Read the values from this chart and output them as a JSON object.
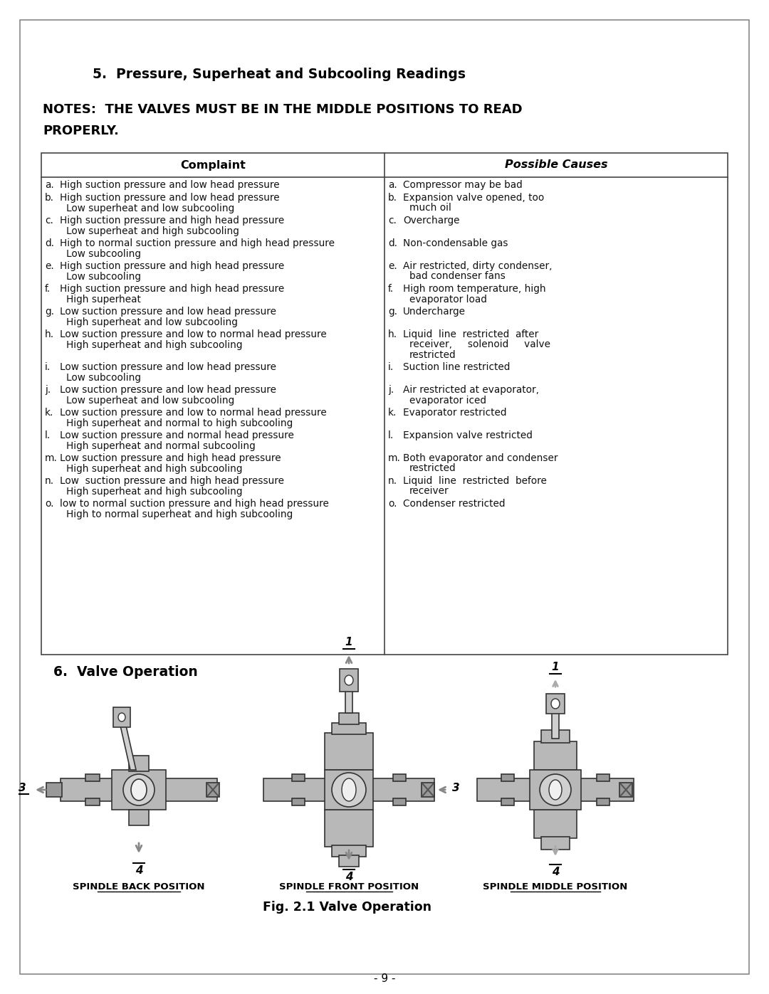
{
  "section5_title": "5.  Pressure, Superheat and Subcooling Readings",
  "notes_line1": "NOTES:  THE VALVES MUST BE IN THE MIDDLE POSITIONS TO READ",
  "notes_line2": "PROPERLY.",
  "table_header_left": "Complaint",
  "table_header_right": "Possible Causes",
  "complaints": [
    [
      "a.",
      "High suction pressure and low head pressure"
    ],
    [
      "b.",
      "High suction pressure and low head pressure",
      "Low superheat and low subcooling"
    ],
    [
      "c.",
      "High suction pressure and high head pressure",
      "Low superheat and high subcooling"
    ],
    [
      "d.",
      "High to normal suction pressure and high head pressure",
      "Low subcooling"
    ],
    [
      "e.",
      "High suction pressure and high head pressure",
      "Low subcooling"
    ],
    [
      "f.",
      "High suction pressure and high head pressure",
      "High superheat"
    ],
    [
      "g.",
      "Low suction pressure and low head pressure",
      "High superheat and low subcooling"
    ],
    [
      "h.",
      "Low suction pressure and low to normal head pressure",
      "High superheat and high subcooling"
    ],
    [
      "",
      ""
    ],
    [
      "i.",
      "Low suction pressure and low head pressure",
      "Low subcooling"
    ],
    [
      "j.",
      "Low suction pressure and low head pressure",
      "Low superheat and low subcooling"
    ],
    [
      "k.",
      "Low suction pressure and low to normal head pressure",
      "High superheat and normal to high subcooling"
    ],
    [
      "l.",
      "Low suction pressure and normal head pressure",
      "High superheat and normal subcooling"
    ],
    [
      "m.",
      "Low suction pressure and high head pressure",
      "High superheat and high subcooling"
    ],
    [
      "n.",
      "Low  suction pressure and high head pressure",
      "High superheat and high subcooling"
    ],
    [
      "o.",
      "low to normal suction pressure and high head pressure",
      "High to normal superheat and high subcooling"
    ]
  ],
  "causes": [
    [
      "a.",
      "Compressor may be bad"
    ],
    [
      "b.",
      "Expansion valve opened, too",
      "much oil"
    ],
    [
      "c.",
      "Overcharge"
    ],
    [
      "d.",
      "Non-condensable gas"
    ],
    [
      "e.",
      "Air restricted, dirty condenser,",
      "bad condenser fans"
    ],
    [
      "f.",
      "High room temperature, high",
      "evaporator load"
    ],
    [
      "g.",
      "Undercharge"
    ],
    [
      "h.",
      "Liquid  line  restricted  after",
      "receiver,     solenoid     valve",
      "restricted"
    ],
    [
      "",
      ""
    ],
    [
      "i.",
      "Suction line restricted"
    ],
    [
      "j.",
      "Air restricted at evaporator,",
      "evaporator iced"
    ],
    [
      "k.",
      "Evaporator restricted"
    ],
    [
      "l.",
      "Expansion valve restricted"
    ],
    [
      "m.",
      "Both evaporator and condenser",
      "restricted"
    ],
    [
      "n.",
      "Liquid  line  restricted  before",
      "receiver"
    ],
    [
      "o.",
      "Condenser restricted"
    ]
  ],
  "section6_title": "6.  Valve Operation",
  "valve_labels": [
    "SPINDLE BACK POSITION",
    "SPINDLE FRONT POSITION",
    "SPINDLE MIDDLE POSITION"
  ],
  "fig_caption": "Fig. 2.1 Valve Operation",
  "page_number": "- 9 -",
  "bg": "#ffffff",
  "fg": "#000000",
  "gray_dark": "#555555",
  "gray_mid": "#888888",
  "gray_light": "#bbbbbb",
  "gray_body": "#c8c8c8",
  "gray_lighter": "#e0e0e0"
}
